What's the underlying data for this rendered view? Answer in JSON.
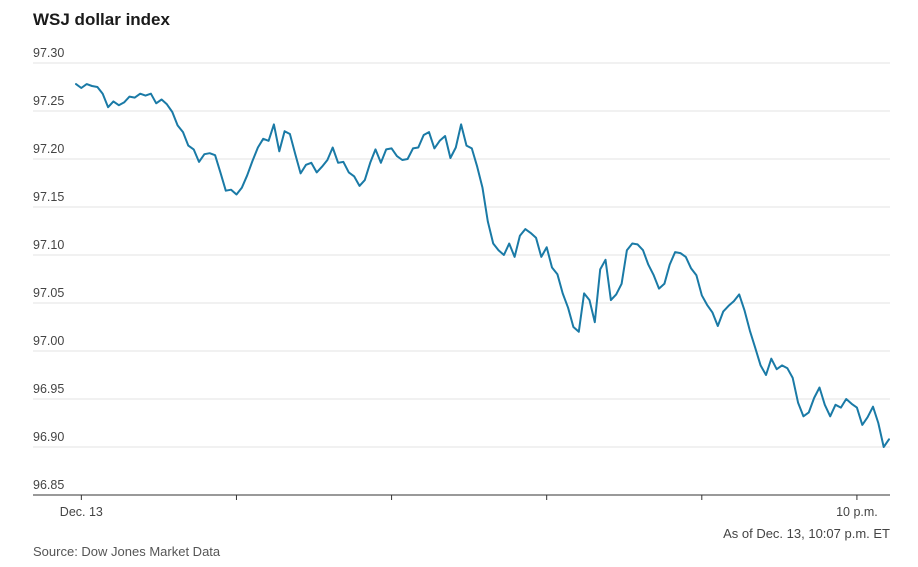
{
  "note": "As of Dec. 13, 10:07 p.m. ET",
  "source": "Source: Dow Jones Market Data",
  "colors": {
    "line": "#1a7aa6",
    "grid": "#e3e3e3",
    "axis": "#333333"
  },
  "chart_data": {
    "type": "line",
    "title": "WSJ dollar index",
    "xlabel": "",
    "ylabel": "",
    "x_tick_labels": [
      {
        "label": "Dec. 13",
        "index": 1
      },
      {
        "label": "",
        "index": 30
      },
      {
        "label": "",
        "index": 59
      },
      {
        "label": "",
        "index": 88
      },
      {
        "label": "",
        "index": 117
      },
      {
        "label": "10 p.m.",
        "index": 146
      }
    ],
    "ylim": [
      96.85,
      97.3
    ],
    "yticks": [
      96.85,
      96.9,
      96.95,
      97.0,
      97.05,
      97.1,
      97.15,
      97.2,
      97.25,
      97.3
    ],
    "grid": true,
    "series": [
      {
        "name": "",
        "values": [
          97.278,
          97.274,
          97.278,
          97.276,
          97.275,
          97.268,
          97.254,
          97.26,
          97.256,
          97.259,
          97.265,
          97.264,
          97.268,
          97.266,
          97.268,
          97.258,
          97.262,
          97.257,
          97.249,
          97.235,
          97.228,
          97.214,
          97.21,
          97.197,
          97.205,
          97.206,
          97.204,
          97.186,
          97.167,
          97.168,
          97.163,
          97.17,
          97.183,
          97.198,
          97.212,
          97.221,
          97.219,
          97.236,
          97.208,
          97.229,
          97.226,
          97.205,
          97.185,
          97.194,
          97.196,
          97.186,
          97.192,
          97.199,
          97.212,
          97.196,
          97.197,
          97.186,
          97.182,
          97.172,
          97.178,
          97.196,
          97.21,
          97.196,
          97.21,
          97.211,
          97.203,
          97.199,
          97.2,
          97.211,
          97.212,
          97.225,
          97.228,
          97.211,
          97.219,
          97.224,
          97.201,
          97.212,
          97.236,
          97.214,
          97.211,
          97.192,
          97.17,
          97.135,
          97.112,
          97.105,
          97.1,
          97.112,
          97.098,
          97.12,
          97.127,
          97.123,
          97.118,
          97.098,
          97.108,
          97.087,
          97.08,
          97.06,
          97.045,
          97.025,
          97.02,
          97.06,
          97.053,
          97.03,
          97.085,
          97.095,
          97.053,
          97.059,
          97.07,
          97.105,
          97.112,
          97.111,
          97.105,
          97.09,
          97.079,
          97.065,
          97.07,
          97.09,
          97.103,
          97.102,
          97.098,
          97.086,
          97.079,
          97.058,
          97.048,
          97.04,
          97.026,
          97.041,
          97.047,
          97.052,
          97.059,
          97.042,
          97.021,
          97.003,
          96.985,
          96.975,
          96.992,
          96.981,
          96.985,
          96.982,
          96.972,
          96.946,
          96.932,
          96.936,
          96.951,
          96.962,
          96.944,
          96.932,
          96.944,
          96.941,
          96.95,
          96.945,
          96.941,
          96.923,
          96.931,
          96.942,
          96.925,
          96.9,
          96.908
        ]
      }
    ]
  }
}
